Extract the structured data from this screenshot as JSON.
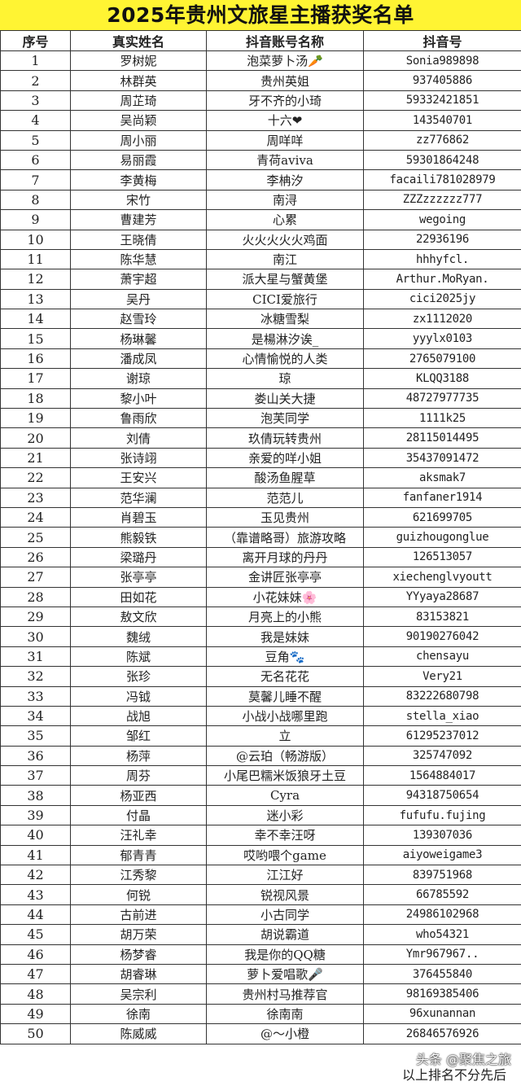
{
  "title": "2025年贵州文旅星主播获奖名单",
  "headers": [
    "序号",
    "真实姓名",
    "抖音账号名称",
    "抖音号"
  ],
  "rows": [
    [
      "1",
      "罗树妮",
      "泡菜萝卜汤🥕",
      "Sonia989898"
    ],
    [
      "2",
      "林群英",
      "贵州英姐",
      "937405886"
    ],
    [
      "3",
      "周芷琦",
      "牙不齐的小琦",
      "59332421851"
    ],
    [
      "4",
      "吴尚颖",
      "十六❤",
      "143540701"
    ],
    [
      "5",
      "周小丽",
      "周咩咩",
      "zz776862"
    ],
    [
      "6",
      "易丽霞",
      "青荷aviva",
      "59301864248"
    ],
    [
      "7",
      "李黄梅",
      "李柟汐",
      "facaili781028979"
    ],
    [
      "8",
      "宋竹",
      "南浔",
      "ZZZzzzzzz777"
    ],
    [
      "9",
      "曹建芳",
      "心累",
      "wegoing"
    ],
    [
      "10",
      "王晓倩",
      "火火火火火鸡面",
      "22936196"
    ],
    [
      "11",
      "陈华慧",
      "南江",
      "hhhyfcl."
    ],
    [
      "12",
      "萧宇超",
      "派大星与蟹黄堡",
      "Arthur.MoRyan."
    ],
    [
      "13",
      "吴丹",
      "CICI爱旅行",
      "cici2025jy"
    ],
    [
      "14",
      "赵雪玲",
      "冰糖雪梨",
      "zx1112020"
    ],
    [
      "15",
      "杨琳馨",
      "是楊淋汐诶_",
      "yyylx0103"
    ],
    [
      "16",
      "潘成凤",
      "心情愉悦的人类",
      "2765079100"
    ],
    [
      "17",
      "谢琼",
      "琼",
      "KLQQ3188"
    ],
    [
      "18",
      "黎小叶",
      "娄山关大捷",
      "48727977735"
    ],
    [
      "19",
      "鲁雨欣",
      "泡芙同学",
      "1111k25"
    ],
    [
      "20",
      "刘倩",
      "玖倩玩转贵州",
      "28115014495"
    ],
    [
      "21",
      "张诗翊",
      "亲爱的咩小姐",
      "35437091472"
    ],
    [
      "22",
      "王安兴",
      "酸汤鱼腥草",
      "aksmak7"
    ],
    [
      "23",
      "范华澜",
      "范范儿",
      "fanfaner1914"
    ],
    [
      "24",
      "肖碧玉",
      "玉见贵州",
      "621699705"
    ],
    [
      "25",
      "熊毅铁",
      "（靠谱略哥）旅游攻略",
      "guizhougonglue"
    ],
    [
      "26",
      "梁璐丹",
      "离开月球的丹丹",
      "126513057"
    ],
    [
      "27",
      "张亭亭",
      "金讲匠张亭亭",
      "xiechenglvyoutt"
    ],
    [
      "28",
      "田如花",
      "小花妹妹🌸",
      "YYyaya28687"
    ],
    [
      "29",
      "敖文欣",
      "月亮上的小熊",
      "83153821"
    ],
    [
      "30",
      "魏绒",
      "我是妹妹",
      "90190276042"
    ],
    [
      "31",
      "陈斌",
      "豆角🐾",
      "chensayu"
    ],
    [
      "32",
      "张珍",
      "无名花花",
      "Very21"
    ],
    [
      "33",
      "冯钺",
      "莫馨儿睡不醒",
      "83222680798"
    ],
    [
      "34",
      "战旭",
      "小战小战哪里跑",
      "stella_xiao"
    ],
    [
      "35",
      "邹红",
      "立",
      "61295237012"
    ],
    [
      "36",
      "杨萍",
      "@云珀（畅游版）",
      "325747092"
    ],
    [
      "37",
      "周芬",
      "小尾巴糯米饭狼牙土豆",
      "1564884017"
    ],
    [
      "38",
      "杨亚西",
      "Cyra",
      "94318750654"
    ],
    [
      "39",
      "付晶",
      "迷小彩",
      "fufufu.fujing"
    ],
    [
      "40",
      "汪礼幸",
      "幸不幸汪呀",
      "139307036"
    ],
    [
      "41",
      "郁青青",
      "哎哟喂个game",
      "aiyoweigame3"
    ],
    [
      "42",
      "江秀黎",
      "江江好",
      "839751968"
    ],
    [
      "43",
      "何锐",
      "锐视风景",
      "66785592"
    ],
    [
      "44",
      "古前进",
      "小古同学",
      "24986102968"
    ],
    [
      "45",
      "胡万荣",
      "胡说霸道",
      "who54321"
    ],
    [
      "46",
      "杨梦睿",
      "我是你的QQ糖",
      "Ymr967967.."
    ],
    [
      "47",
      "胡睿琳",
      "萝卜爱唱歌🎤",
      "376455840"
    ],
    [
      "48",
      "吴宗利",
      "贵州村马推荐官",
      "98169385406"
    ],
    [
      "49",
      "徐南",
      "徐南南",
      "96xunannan"
    ],
    [
      "50",
      "陈威威",
      "@～小橙",
      "26846576926"
    ]
  ],
  "footer_note": "以上排名不分先后",
  "watermark": "头条 @聚焦之旅",
  "colors": {
    "title_bg": "#fff433",
    "border": "#333333"
  }
}
